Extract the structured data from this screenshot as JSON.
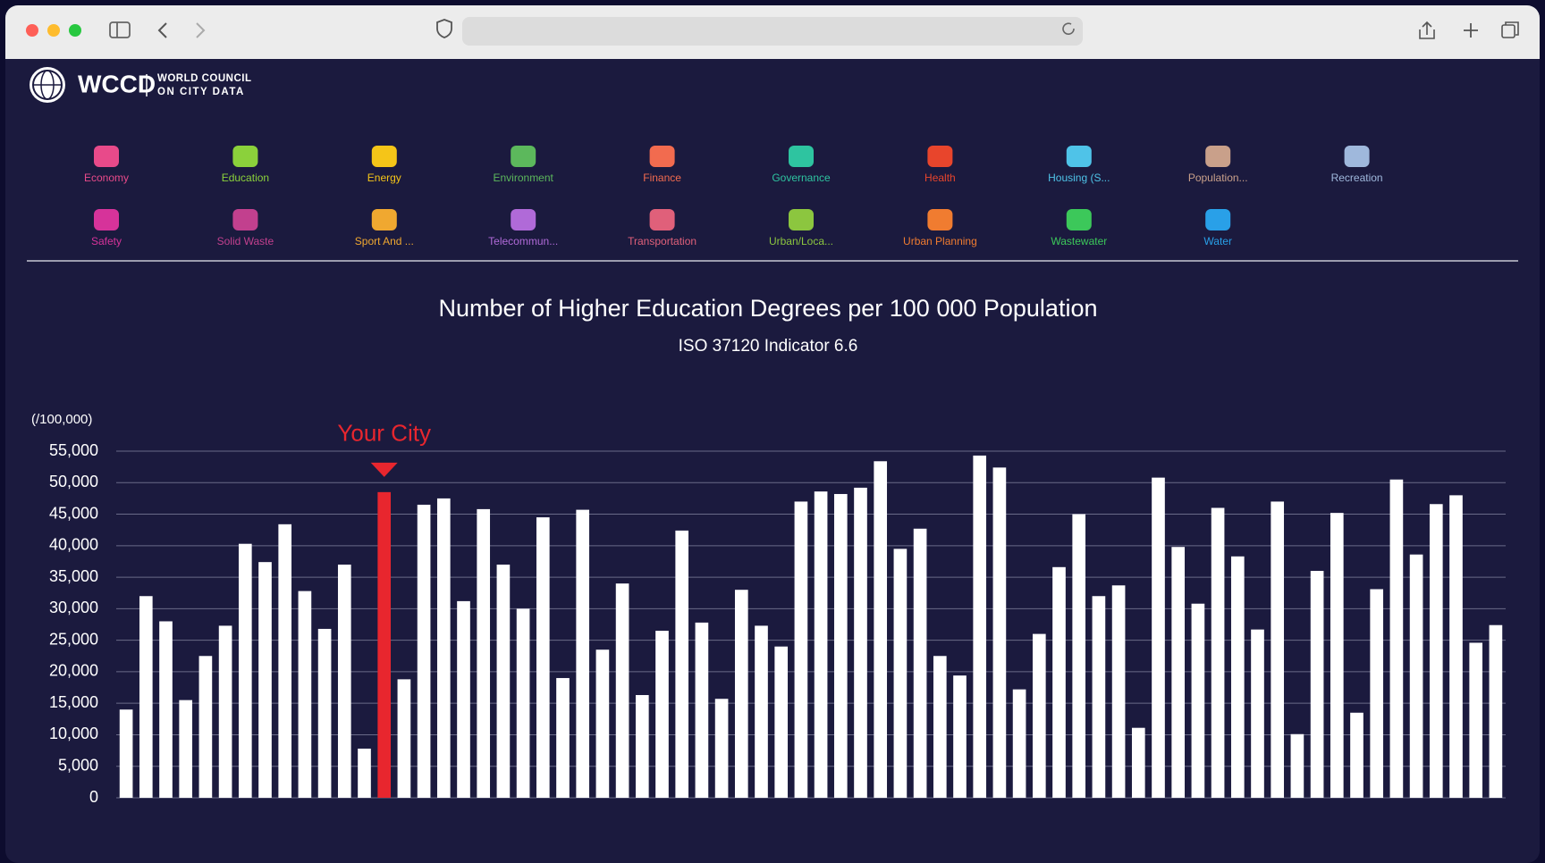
{
  "header": {
    "logo": "WCCD",
    "org_line1": "WORLD COUNCIL",
    "org_line2": "ON CITY DATA"
  },
  "nav": [
    {
      "label": "Economy",
      "color": "#e84a8a"
    },
    {
      "label": "Education",
      "color": "#8bd13b"
    },
    {
      "label": "Energy",
      "color": "#f5c518"
    },
    {
      "label": "Environment",
      "color": "#5cb85c"
    },
    {
      "label": "Finance",
      "color": "#f26b4f"
    },
    {
      "label": "Governance",
      "color": "#2ec4a0"
    },
    {
      "label": "Health",
      "color": "#e8452c"
    },
    {
      "label": "Housing (S...",
      "color": "#4fc3e8"
    },
    {
      "label": "Population...",
      "color": "#c9a08a"
    },
    {
      "label": "Recreation",
      "color": "#9fb8dc"
    },
    {
      "label": "Safety",
      "color": "#d6339a"
    },
    {
      "label": "Solid Waste",
      "color": "#c2408e"
    },
    {
      "label": "Sport And ...",
      "color": "#f0a830"
    },
    {
      "label": "Telecommun...",
      "color": "#b06ad8"
    },
    {
      "label": "Transportation",
      "color": "#e0607a"
    },
    {
      "label": "Urban/Loca...",
      "color": "#8cc63f"
    },
    {
      "label": "Urban Planning",
      "color": "#f07c30"
    },
    {
      "label": "Wastewater",
      "color": "#3cc85a"
    },
    {
      "label": "Water",
      "color": "#29a0e8"
    }
  ],
  "chart_data": {
    "type": "bar",
    "title": "Number of Higher Education Degrees per 100 000 Population",
    "subtitle": "ISO 37120 Indicator 6.6",
    "y_label": "(/100,000)",
    "color": "#ffffff",
    "highlight": {
      "index": 13,
      "color": "#e8262e",
      "label": "Your City"
    },
    "categories": [
      null,
      null,
      null,
      null,
      null,
      null,
      null,
      null,
      null,
      null,
      null,
      null,
      null,
      null,
      null,
      null,
      null,
      null,
      null,
      null,
      null,
      null,
      null,
      null,
      null,
      null,
      null,
      null,
      null,
      null,
      null,
      null,
      null,
      null,
      null,
      null,
      null,
      null,
      null,
      null,
      null,
      null,
      null,
      null,
      null,
      null,
      null,
      null,
      null,
      null,
      null,
      null,
      null,
      null,
      null,
      null,
      null,
      null,
      null,
      null,
      null,
      null,
      null,
      null,
      null,
      null,
      null,
      null,
      null,
      null
    ],
    "values": [
      14000,
      32000,
      28000,
      15500,
      22500,
      27300,
      40300,
      37400,
      43400,
      32800,
      26800,
      37000,
      7800,
      48500,
      18800,
      46500,
      47500,
      31200,
      45800,
      37000,
      30000,
      44500,
      19000,
      45700,
      23500,
      34000,
      16300,
      26500,
      42400,
      27800,
      15700,
      33000,
      27300,
      24000,
      47000,
      48600,
      48200,
      49200,
      53400,
      39500,
      42700,
      22500,
      19400,
      54300,
      52400,
      17200,
      26000,
      36600,
      45000,
      32000,
      33700,
      11100,
      50800,
      39800,
      30800,
      46000,
      38300,
      26700,
      47000,
      10100,
      36000,
      45200,
      13500,
      33100,
      50500,
      38600,
      46600,
      48000,
      24600,
      27400
    ],
    "ylim": [
      0,
      55000
    ],
    "yticks": [
      0,
      {
        "value": 5000,
        "label": "5,000"
      },
      {
        "value": 10000,
        "label": "10,000"
      },
      {
        "value": 15000,
        "label": "15,000"
      },
      {
        "value": 20000,
        "label": "20,000"
      },
      {
        "value": 25000,
        "label": "25,000"
      },
      {
        "value": 30000,
        "label": "30,000"
      },
      {
        "value": 35000,
        "label": "35,000"
      },
      {
        "value": 40000,
        "label": "40,000"
      },
      {
        "value": 45000,
        "label": "45,000"
      },
      {
        "value": 50000,
        "label": "50,000"
      },
      {
        "value": 55000,
        "label": "55,000"
      }
    ],
    "grid": true
  }
}
